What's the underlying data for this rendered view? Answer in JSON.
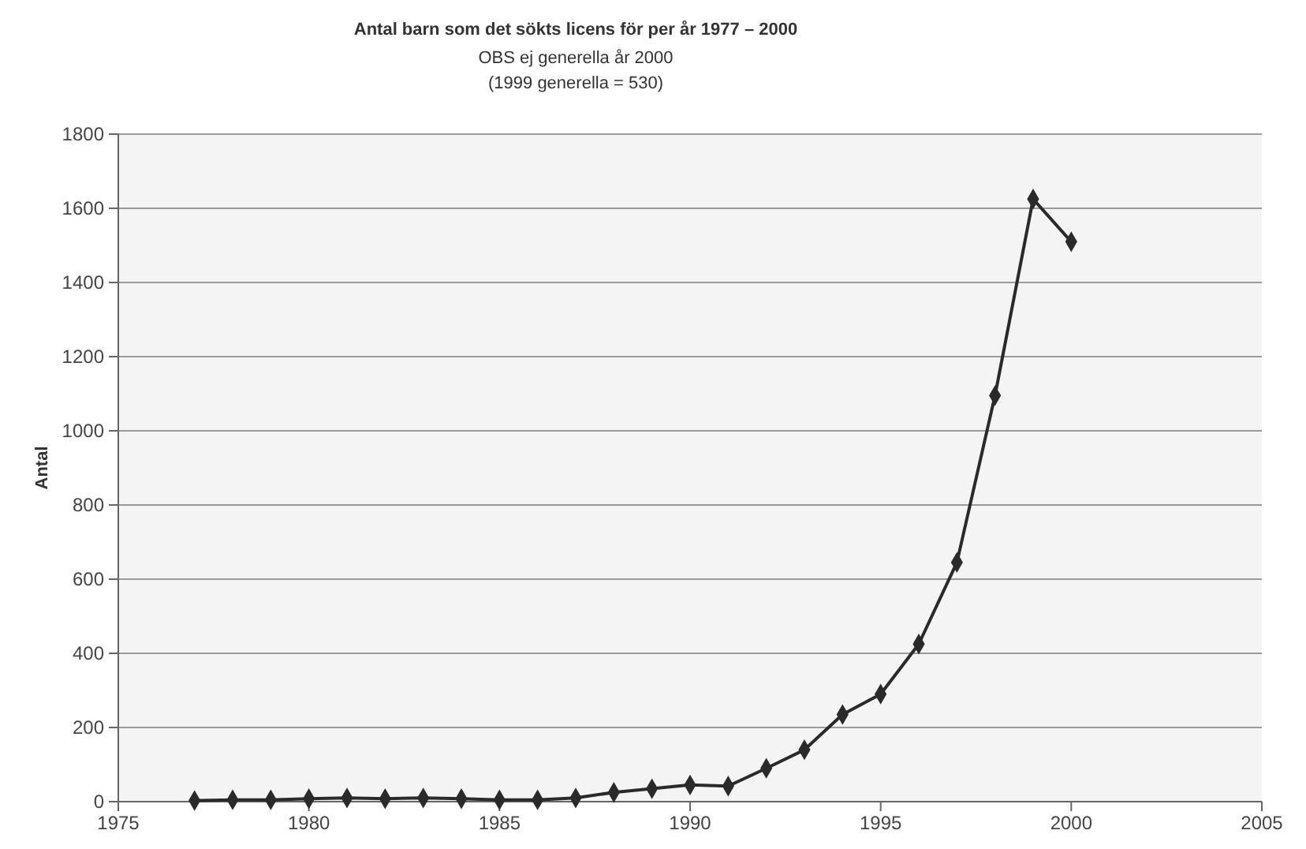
{
  "chart_data": {
    "type": "line",
    "title": "Antal barn som det sökts licens för per år 1977 – 2000",
    "subtitle": "OBS ej generella år 2000\n(1999 generella = 530)",
    "ylabel": "Antal",
    "x": [
      1977,
      1978,
      1979,
      1980,
      1981,
      1982,
      1983,
      1984,
      1985,
      1986,
      1987,
      1988,
      1989,
      1990,
      1991,
      1992,
      1993,
      1994,
      1995,
      1996,
      1997,
      1998,
      1999,
      2000
    ],
    "series": [
      {
        "color": "#2a2a2a",
        "values": [
          3,
          5,
          5,
          8,
          10,
          8,
          10,
          8,
          5,
          5,
          10,
          25,
          35,
          45,
          42,
          90,
          140,
          235,
          290,
          425,
          645,
          1095,
          1625,
          1510
        ]
      }
    ],
    "xlim": [
      1975,
      2005
    ],
    "xticks": [
      1975,
      1980,
      1985,
      1990,
      1995,
      2000,
      2005
    ],
    "ylim": [
      0,
      1800
    ],
    "yticks": [
      0,
      200,
      400,
      600,
      800,
      1000,
      1200,
      1400,
      1600,
      1800
    ],
    "grid": "y",
    "marker": "diamond",
    "line_style": "solid"
  }
}
